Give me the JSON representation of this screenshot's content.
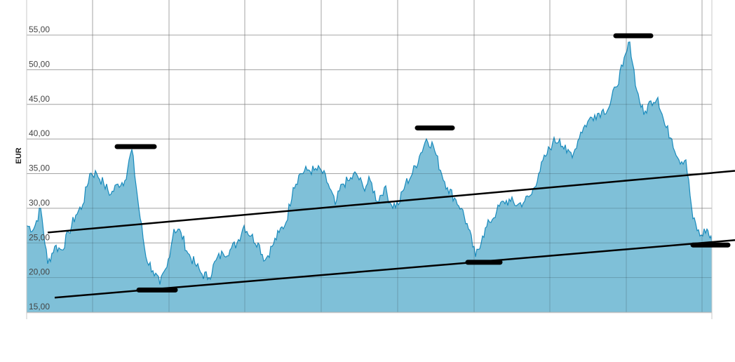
{
  "chart_data": {
    "type": "area",
    "xlabel": "",
    "ylabel": "EUR",
    "ylim": [
      15,
      60
    ],
    "yticks": [
      "15,00",
      "20,00",
      "25,00",
      "30,00",
      "35,00",
      "40,00",
      "45,00",
      "50,00",
      "55,00"
    ],
    "ytick_values": [
      15,
      20,
      25,
      30,
      35,
      40,
      45,
      50,
      55
    ],
    "grid": true,
    "vertical_gridlines": 9,
    "colors": {
      "fill": "#7fc0d8",
      "line": "#1a8bbd",
      "grid": "#c8c8c8",
      "annotation": "#000000"
    },
    "series": [
      {
        "values": [
          27.5,
          27,
          30,
          22,
          24.5,
          24,
          26.5,
          29,
          30.5,
          35,
          35,
          33.5,
          32,
          33.5,
          34,
          38.5,
          30,
          23,
          21,
          19,
          21.5,
          27,
          26.5,
          23.5,
          22,
          20.5,
          20,
          22.5,
          23.5,
          24,
          25,
          27.5,
          26,
          25,
          22.5,
          24.5,
          26.5,
          28,
          33,
          35,
          35.5,
          35.5,
          35.5,
          33.5,
          30.5,
          33.5,
          34,
          35,
          33,
          34,
          31,
          33,
          30.5,
          30.5,
          33.5,
          35,
          37.5,
          40,
          39,
          35.5,
          33,
          31.5,
          30,
          27,
          23,
          26,
          28,
          29.5,
          31,
          31,
          30.5,
          31,
          32,
          35,
          37.5,
          39.5,
          40,
          38,
          38,
          41,
          42.5,
          43.5,
          44,
          44.5,
          47.5,
          50.5,
          54,
          47,
          43.5,
          45.5,
          46,
          42,
          40,
          37,
          37,
          28.5,
          26,
          27,
          25
        ]
      }
    ],
    "trend_lines": [
      {
        "from": [
          3,
          26.5
        ],
        "to": [
          101,
          35.4
        ]
      },
      {
        "from": [
          4,
          17.1
        ],
        "to": [
          101,
          25.4
        ]
      }
    ],
    "level_markers": [
      {
        "x_from": 12.9,
        "x_to": 18.2,
        "value": 38.9
      },
      {
        "x_from": 16.0,
        "x_to": 21.2,
        "value": 18.2
      },
      {
        "x_from": 55.7,
        "x_to": 60.7,
        "value": 41.6
      },
      {
        "x_from": 62.9,
        "x_to": 67.5,
        "value": 22.2
      },
      {
        "x_from": 84.0,
        "x_to": 89.0,
        "value": 54.9
      },
      {
        "x_from": 95.0,
        "x_to": 100.0,
        "value": 24.7
      }
    ]
  }
}
